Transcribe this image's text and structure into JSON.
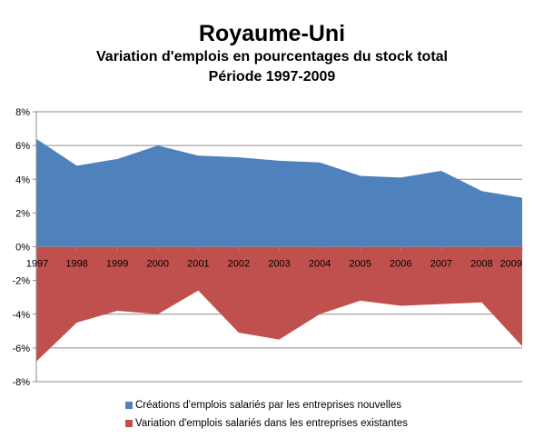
{
  "chart_data": {
    "type": "area",
    "title": "Royaume-Uni",
    "subtitle_lines": [
      "Variation d'emplois en pourcentages du stock total",
      "Période 1997-2009"
    ],
    "x": [
      "1997",
      "1998",
      "1999",
      "2000",
      "2001",
      "2002",
      "2003",
      "2004",
      "2005",
      "2006",
      "2007",
      "2008",
      "2009"
    ],
    "series": [
      {
        "name": "Créations d'emplois salariés par les entreprises nouvelles",
        "color": "#4F81BD",
        "values": [
          6.4,
          4.8,
          5.2,
          6.0,
          5.4,
          5.3,
          5.1,
          5.0,
          4.2,
          4.1,
          4.5,
          3.3,
          2.9
        ]
      },
      {
        "name": "Variation d'emplois salariés dans les entreprises existantes",
        "color": "#C0504D",
        "values": [
          -6.8,
          -4.5,
          -3.8,
          -4.0,
          -2.6,
          -5.1,
          -5.5,
          -4.0,
          -3.2,
          -3.5,
          -3.4,
          -3.3,
          -5.9
        ]
      }
    ],
    "yticks": [
      "8%",
      "6%",
      "4%",
      "2%",
      "0%",
      "-2%",
      "-4%",
      "-6%",
      "-8%"
    ],
    "ylim": [
      -8,
      8
    ],
    "grid": true,
    "legend_position": "bottom"
  }
}
